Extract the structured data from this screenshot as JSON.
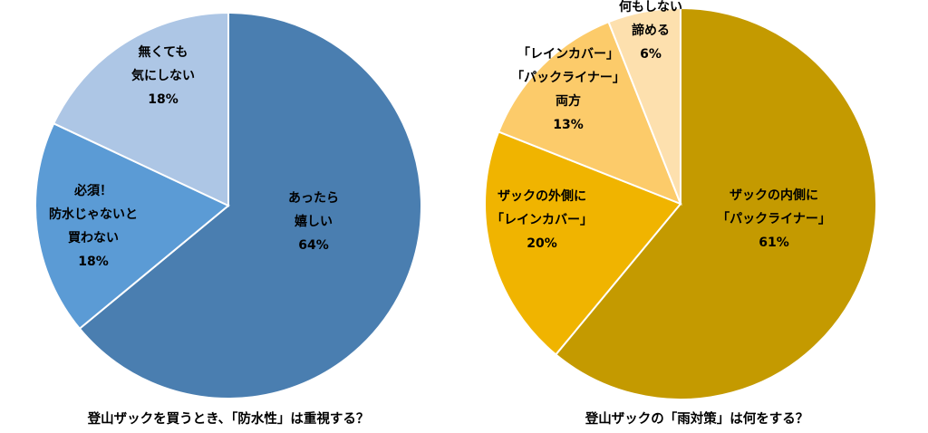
{
  "chart_data": [
    {
      "type": "pie",
      "title": "登山ザックを買うとき、「防水性」は重視する？",
      "slices": [
        {
          "label_lines": [
            "あったら",
            "嬉しい",
            "64%"
          ],
          "value": 64,
          "color": "#4a7eb0"
        },
        {
          "label_lines": [
            "必須！",
            "防水じゃないと",
            "買わない",
            "18%"
          ],
          "value": 18,
          "color": "#5b9bd5"
        },
        {
          "label_lines": [
            "無くても",
            "気にしない",
            "18%"
          ],
          "value": 18,
          "color": "#adc6e5"
        }
      ],
      "start": "12 o'clock",
      "direction": "clockwise"
    },
    {
      "type": "pie",
      "title": "登山ザックの「雨対策」は何をする？",
      "slices": [
        {
          "label_lines": [
            "ザックの内側に",
            "「パックライナー」",
            "61%"
          ],
          "value": 61,
          "color": "#c49a00"
        },
        {
          "label_lines": [
            "ザックの外側に",
            "「レインカバー」",
            "20%"
          ],
          "value": 20,
          "color": "#f0b400"
        },
        {
          "label_lines": [
            "「レインカバー」",
            "「パックライナー」",
            "両方",
            "13%"
          ],
          "value": 13,
          "color": "#fccb6a"
        },
        {
          "label_lines": [
            "何もしない",
            "諦める",
            "6%"
          ],
          "value": 6,
          "color": "#fde0ae"
        }
      ],
      "start": "12 o'clock",
      "direction": "clockwise"
    }
  ]
}
